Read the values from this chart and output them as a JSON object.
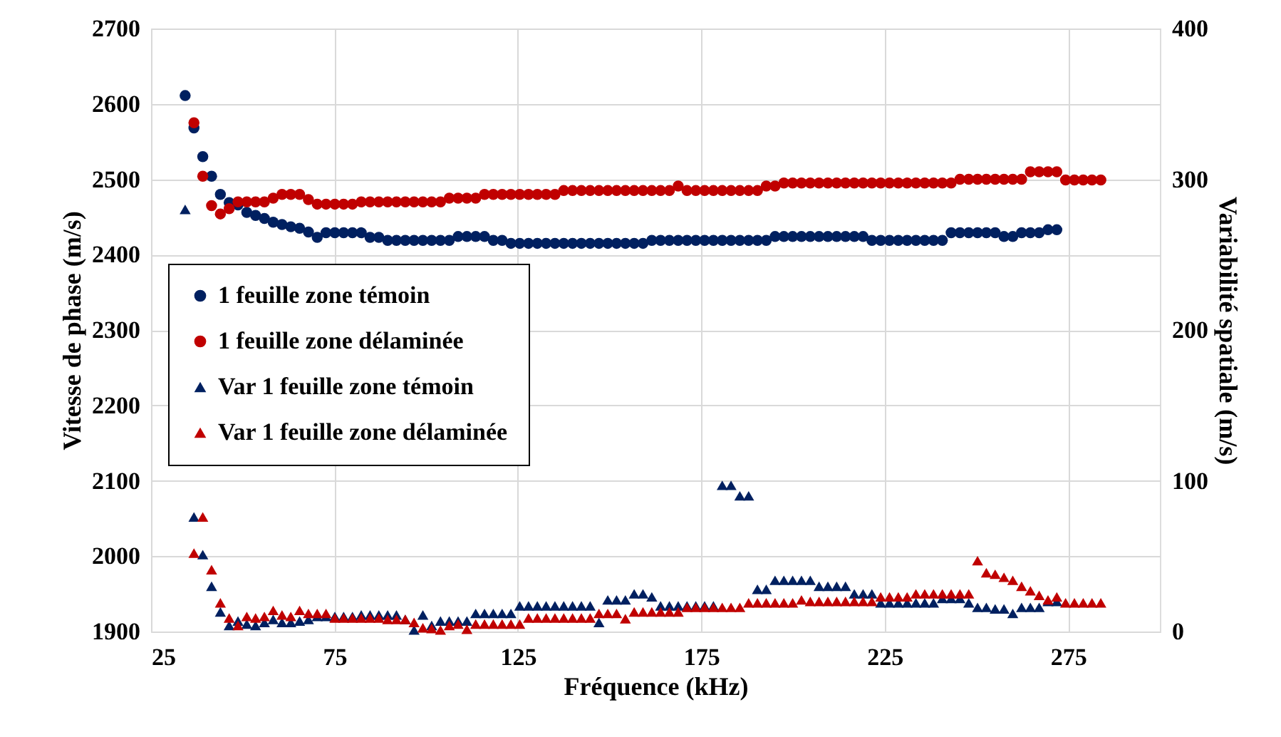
{
  "chart_data": {
    "type": "scatter",
    "xlabel": "Fréquence (kHz)",
    "ylabel": "Vitesse de phase (m/s)",
    "y2label": "Variabilité spatiale (m/s)",
    "xlim": [
      25,
      300
    ],
    "xticks": [
      25,
      75,
      125,
      175,
      225,
      275
    ],
    "ylim": [
      1900,
      2700
    ],
    "yticks": [
      1900,
      2000,
      2100,
      2200,
      2300,
      2400,
      2500,
      2600,
      2700
    ],
    "y2lim": [
      0,
      400
    ],
    "y2ticks": [
      0,
      100,
      200,
      300,
      400
    ],
    "grid": true,
    "legend": "left",
    "x": [
      34.3,
      36.7,
      39.1,
      41.5,
      43.9,
      46.3,
      48.7,
      51.1,
      53.5,
      55.9,
      58.3,
      60.7,
      63.1,
      65.5,
      67.9,
      70.3,
      72.7,
      75.1,
      77.5,
      79.9,
      82.3,
      84.7,
      87.1,
      89.5,
      91.9,
      94.3,
      96.7,
      99.1,
      101.5,
      103.9,
      106.3,
      108.7,
      111.1,
      113.5,
      115.9,
      118.3,
      120.7,
      123.1,
      125.5,
      127.9,
      130.3,
      132.7,
      135.1,
      137.5,
      139.9,
      142.3,
      144.7,
      147.1,
      149.5,
      151.9,
      154.3,
      156.7,
      159.1,
      161.5,
      163.9,
      166.3,
      168.7,
      171.1,
      173.5,
      175.9,
      178.3,
      180.7,
      183.1,
      185.5,
      187.9,
      190.3,
      192.7,
      195.1,
      197.5,
      199.9,
      202.3,
      204.7,
      207.1,
      209.5,
      211.9,
      214.3,
      216.7,
      219.1,
      221.5,
      223.9,
      226.3,
      228.7,
      231.1,
      233.5,
      235.9,
      238.3,
      240.7,
      243.1,
      245.5,
      247.9,
      250.3,
      252.7,
      255.1,
      257.5,
      259.9,
      262.3,
      264.7,
      267.1,
      269.5,
      271.9,
      274.3,
      276.7,
      279.1,
      281.5,
      283.9
    ],
    "series": [
      {
        "name": "1 feuille zone témoin",
        "color": "#002060",
        "marker": "circle",
        "values": [
          2611,
          2568,
          2530,
          2504,
          2480,
          2469,
          2466,
          2456,
          2452,
          2448,
          2443,
          2440,
          2437,
          2435,
          2430,
          2423,
          2429,
          2429,
          2429,
          2429,
          2429,
          2423,
          2423,
          2419,
          2419,
          2419,
          2419,
          2419,
          2419,
          2419,
          2419,
          2424,
          2424,
          2424,
          2424,
          2419,
          2419,
          2415,
          2415,
          2415,
          2415,
          2415,
          2415,
          2415,
          2415,
          2415,
          2415,
          2415,
          2415,
          2415,
          2415,
          2415,
          2415,
          2419,
          2419,
          2419,
          2419,
          2419,
          2419,
          2419,
          2419,
          2419,
          2419,
          2419,
          2419,
          2419,
          2419,
          2424,
          2424,
          2424,
          2424,
          2424,
          2424,
          2424,
          2424,
          2424,
          2424,
          2424,
          2419,
          2419,
          2419,
          2419,
          2419,
          2419,
          2419,
          2419,
          2419,
          2429,
          2429,
          2429,
          2429,
          2429,
          2429,
          2424,
          2424,
          2429,
          2429,
          2429,
          2433,
          2433,
          null,
          null,
          null,
          null,
          null
        ]
      },
      {
        "name": "1 feuille zone délaminée",
        "color": "#c00000",
        "marker": "circle",
        "values": [
          null,
          2575,
          2504,
          2465,
          2454,
          2461,
          2470,
          2470,
          2470,
          2470,
          2475,
          2480,
          2480,
          2480,
          2473,
          2467,
          2467,
          2467,
          2467,
          2467,
          2470,
          2470,
          2470,
          2470,
          2470,
          2470,
          2470,
          2470,
          2470,
          2470,
          2475,
          2475,
          2475,
          2475,
          2480,
          2480,
          2480,
          2480,
          2480,
          2480,
          2480,
          2480,
          2480,
          2485,
          2485,
          2485,
          2485,
          2485,
          2485,
          2485,
          2485,
          2485,
          2485,
          2485,
          2485,
          2485,
          2491,
          2485,
          2485,
          2485,
          2485,
          2485,
          2485,
          2485,
          2485,
          2485,
          2491,
          2491,
          2495,
          2495,
          2495,
          2495,
          2495,
          2495,
          2495,
          2495,
          2495,
          2495,
          2495,
          2495,
          2495,
          2495,
          2495,
          2495,
          2495,
          2495,
          2495,
          2495,
          2500,
          2500,
          2500,
          2500,
          2500,
          2500,
          2500,
          2500,
          2510,
          2510,
          2510,
          2510,
          2499,
          2499,
          2499,
          2499,
          2499
        ]
      },
      {
        "name": "Var 1 feuille zone témoin",
        "color": "#002060",
        "marker": "triangle",
        "axis": "y2",
        "values": [
          280,
          76,
          51,
          30,
          13,
          4,
          7,
          5,
          4,
          6,
          8,
          6,
          6,
          7,
          8,
          10,
          10,
          10,
          10,
          10,
          11,
          11,
          11,
          11,
          11,
          8,
          1,
          11,
          4,
          7,
          7,
          7,
          7,
          12,
          12,
          12,
          12,
          12,
          17,
          17,
          17,
          17,
          17,
          17,
          17,
          17,
          17,
          6,
          21,
          21,
          21,
          25,
          25,
          23,
          17,
          17,
          17,
          17,
          17,
          17,
          17,
          97,
          97,
          90,
          90,
          28,
          28,
          34,
          34,
          34,
          34,
          34,
          30,
          30,
          30,
          30,
          25,
          25,
          25,
          19,
          19,
          19,
          19,
          19,
          19,
          19,
          22,
          22,
          22,
          19,
          16,
          16,
          15,
          15,
          12,
          16,
          16,
          16,
          20,
          20,
          null,
          null,
          null,
          null,
          null
        ]
      },
      {
        "name": "Var 1 feuille zone délaminée",
        "color": "#c00000",
        "marker": "triangle",
        "axis": "y2",
        "values": [
          null,
          52,
          76,
          41,
          19,
          9,
          4,
          10,
          9,
          10,
          14,
          11,
          10,
          14,
          12,
          12,
          12,
          9,
          9,
          9,
          9,
          9,
          9,
          8,
          8,
          8,
          6,
          2.5,
          2,
          1,
          4,
          5,
          1.5,
          5,
          5,
          5,
          5,
          5,
          5,
          9,
          9,
          9,
          9,
          9,
          9,
          9,
          9,
          12,
          12,
          12,
          8.5,
          13,
          13,
          13,
          13,
          13,
          13,
          16,
          16,
          16,
          16,
          16,
          16,
          16,
          19,
          19,
          19,
          19,
          19,
          19,
          21,
          20,
          20,
          20,
          20,
          20,
          20,
          20,
          20,
          23,
          23,
          23,
          23,
          25,
          25,
          25,
          25,
          25,
          25,
          25,
          47,
          39,
          38,
          36,
          34,
          30,
          27,
          24,
          21,
          23,
          19,
          19,
          19,
          19,
          19
        ]
      }
    ]
  }
}
